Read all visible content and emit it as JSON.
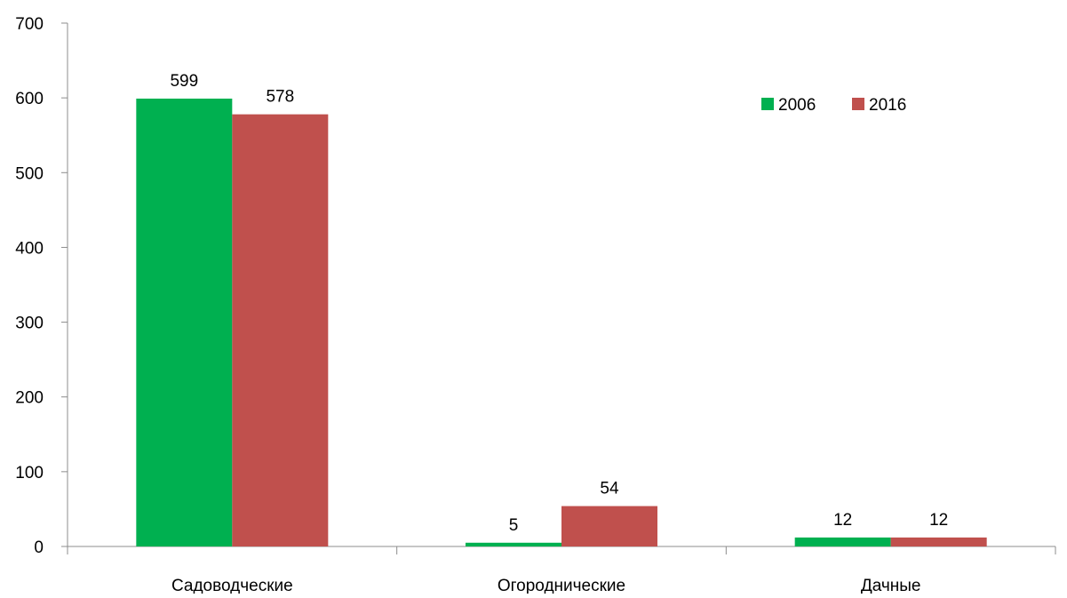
{
  "chart_data": {
    "type": "bar",
    "title": "",
    "xlabel": "",
    "ylabel": "",
    "categories": [
      "Садоводческие",
      "Огороднические",
      "Дачные"
    ],
    "series": [
      {
        "name": "2006",
        "color": "#00b050",
        "values": [
          599,
          5,
          12
        ]
      },
      {
        "name": "2016",
        "color": "#c0504d",
        "values": [
          578,
          54,
          12
        ]
      }
    ],
    "ylim": [
      0,
      700
    ],
    "yticks": [
      0,
      100,
      200,
      300,
      400,
      500,
      600,
      700
    ],
    "data_labels": true,
    "grid": false,
    "legend": {
      "position": "top-right",
      "orientation": "horizontal"
    }
  }
}
